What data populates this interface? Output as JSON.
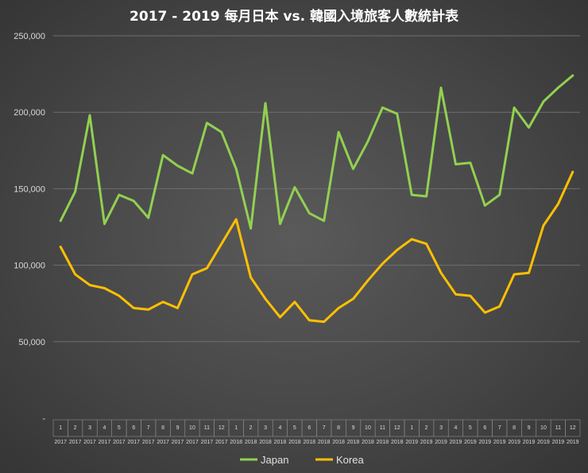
{
  "chart_data": {
    "type": "line",
    "title": "2017 - 2019 每月日本 vs. 韓國入境旅客人數統計表",
    "xlabel": "",
    "ylabel": "",
    "ylim": [
      0,
      250000
    ],
    "yticks": [
      "-",
      "50,000",
      "100,000",
      "150,000",
      "200,000",
      "250,000"
    ],
    "grid": true,
    "legend_position": "bottom",
    "categories": [
      {
        "month": "1",
        "year": "2017"
      },
      {
        "month": "2",
        "year": "2017"
      },
      {
        "month": "3",
        "year": "2017"
      },
      {
        "month": "4",
        "year": "2017"
      },
      {
        "month": "5",
        "year": "2017"
      },
      {
        "month": "6",
        "year": "2017"
      },
      {
        "month": "7",
        "year": "2017"
      },
      {
        "month": "8",
        "year": "2017"
      },
      {
        "month": "9",
        "year": "2017"
      },
      {
        "month": "10",
        "year": "2017"
      },
      {
        "month": "11",
        "year": "2017"
      },
      {
        "month": "12",
        "year": "2017"
      },
      {
        "month": "1",
        "year": "2018"
      },
      {
        "month": "2",
        "year": "2018"
      },
      {
        "month": "3",
        "year": "2018"
      },
      {
        "month": "4",
        "year": "2018"
      },
      {
        "month": "5",
        "year": "2018"
      },
      {
        "month": "6",
        "year": "2018"
      },
      {
        "month": "7",
        "year": "2018"
      },
      {
        "month": "8",
        "year": "2018"
      },
      {
        "month": "9",
        "year": "2018"
      },
      {
        "month": "10",
        "year": "2018"
      },
      {
        "month": "11",
        "year": "2018"
      },
      {
        "month": "12",
        "year": "2018"
      },
      {
        "month": "1",
        "year": "2019"
      },
      {
        "month": "2",
        "year": "2019"
      },
      {
        "month": "3",
        "year": "2019"
      },
      {
        "month": "4",
        "year": "2019"
      },
      {
        "month": "5",
        "year": "2019"
      },
      {
        "month": "6",
        "year": "2019"
      },
      {
        "month": "7",
        "year": "2019"
      },
      {
        "month": "8",
        "year": "2019"
      },
      {
        "month": "9",
        "year": "2019"
      },
      {
        "month": "10",
        "year": "2019"
      },
      {
        "month": "11",
        "year": "2019"
      },
      {
        "month": "12",
        "year": "2019"
      }
    ],
    "series": [
      {
        "name": "Japan",
        "color": "#92d050",
        "values": [
          129000,
          148000,
          198000,
          127000,
          146000,
          142000,
          131000,
          172000,
          165000,
          160000,
          193000,
          187000,
          163000,
          124000,
          206000,
          127000,
          151000,
          134000,
          129000,
          187000,
          163000,
          181000,
          203000,
          199000,
          146000,
          145000,
          216000,
          166000,
          167000,
          139000,
          146000,
          203000,
          190000,
          207000,
          216000,
          224000
        ]
      },
      {
        "name": "Korea",
        "color": "#ffc000",
        "values": [
          112000,
          94000,
          87000,
          85000,
          80000,
          72000,
          71000,
          76000,
          72000,
          94000,
          98000,
          114000,
          130000,
          92000,
          78000,
          66000,
          76000,
          64000,
          63000,
          72000,
          78000,
          90000,
          101000,
          110000,
          117000,
          114000,
          95000,
          81000,
          80000,
          69000,
          73000,
          94000,
          95000,
          126000,
          140000,
          161000
        ]
      }
    ]
  }
}
